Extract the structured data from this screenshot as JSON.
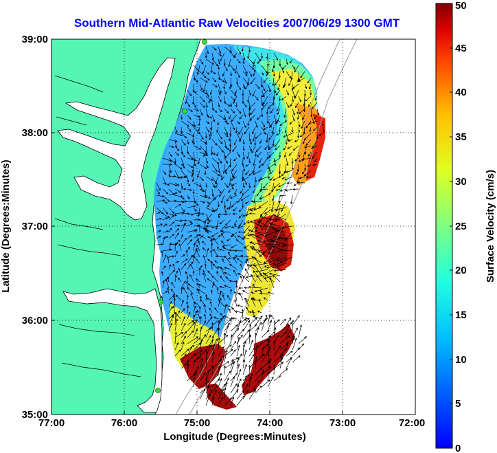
{
  "title": "Southern Mid-Atlantic Raw Velocities 2007/06/29 1300 GMT",
  "colors": {
    "title": "#0000ff",
    "land": "#55f5b4",
    "ocean": "#ffffff",
    "vector": "#000000",
    "bathymetry": "#9a9a9a",
    "station": "#33dd33"
  },
  "chart_data": {
    "type": "heatmap",
    "subtype": "surface current vector field over map",
    "xlabel": "Longitude (Degrees:Minutes)",
    "ylabel": "Latitude (Degrees:Minutes)",
    "x_ticks": [
      "77:00",
      "76:00",
      "75:00",
      "74:00",
      "73:00",
      "72:00"
    ],
    "y_ticks": [
      "39:00",
      "38:00",
      "37:00",
      "36:00",
      "35:00"
    ],
    "xlim": [
      -77,
      -72
    ],
    "ylim": [
      35,
      39
    ],
    "grid": true,
    "colorbar": {
      "label": "Surface Velocity (cm/s)",
      "range": [
        0,
        50
      ],
      "ticks": [
        "0",
        "5",
        "10",
        "15",
        "20",
        "25",
        "30",
        "35",
        "40",
        "45",
        "50"
      ],
      "colormap": "jet"
    }
  }
}
